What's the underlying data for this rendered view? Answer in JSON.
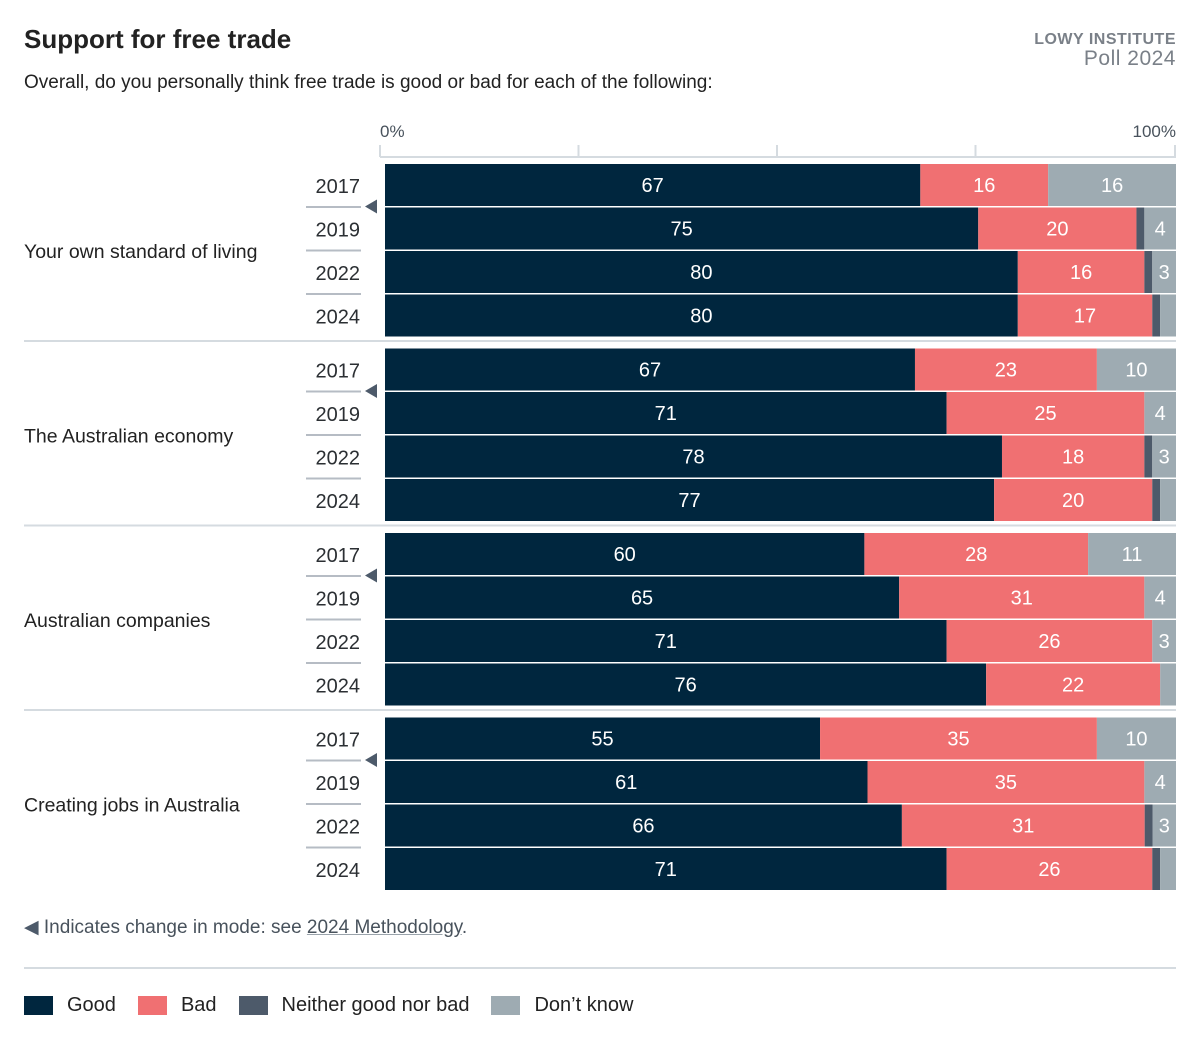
{
  "header": {
    "title": "Support for free trade",
    "subtitle": "Overall, do you personally think free trade is good or bad for each of the following:",
    "brand_line1": "LOWY INSTITUTE",
    "brand_line2": "Poll 2024"
  },
  "chart_data": {
    "type": "bar",
    "orientation": "horizontal",
    "stacked": true,
    "title": "Support for free trade",
    "xlim": [
      0,
      100
    ],
    "x_tick_labels": [
      "0%",
      "100%"
    ],
    "legend_position": "bottom-left",
    "series_names": [
      "Good",
      "Bad",
      "Neither good nor bad",
      "Don’t know"
    ],
    "colors": [
      "#00263e",
      "#f07072",
      "#4d5a6a",
      "#9eabb2"
    ],
    "groups": [
      {
        "label": "Your own standard of living",
        "rows": [
          {
            "year": "2017",
            "values": [
              67,
              16,
              0,
              16
            ]
          },
          {
            "year": "2019",
            "values": [
              75,
              20,
              1,
              4
            ]
          },
          {
            "year": "2022",
            "values": [
              80,
              16,
              1,
              3
            ]
          },
          {
            "year": "2024",
            "values": [
              80,
              17,
              1,
              2
            ]
          }
        ]
      },
      {
        "label": "The Australian economy",
        "rows": [
          {
            "year": "2017",
            "values": [
              67,
              23,
              0,
              10
            ]
          },
          {
            "year": "2019",
            "values": [
              71,
              25,
              0,
              4
            ]
          },
          {
            "year": "2022",
            "values": [
              78,
              18,
              1,
              3
            ]
          },
          {
            "year": "2024",
            "values": [
              77,
              20,
              1,
              2
            ]
          }
        ]
      },
      {
        "label": "Australian companies",
        "rows": [
          {
            "year": "2017",
            "values": [
              60,
              28,
              0,
              11
            ]
          },
          {
            "year": "2019",
            "values": [
              65,
              31,
              0,
              4
            ]
          },
          {
            "year": "2022",
            "values": [
              71,
              26,
              0,
              3
            ]
          },
          {
            "year": "2024",
            "values": [
              76,
              22,
              0,
              2
            ]
          }
        ]
      },
      {
        "label": "Creating jobs in Australia",
        "rows": [
          {
            "year": "2017",
            "values": [
              55,
              35,
              0,
              10
            ]
          },
          {
            "year": "2019",
            "values": [
              61,
              35,
              0,
              4
            ]
          },
          {
            "year": "2022",
            "values": [
              66,
              31,
              1,
              3
            ]
          },
          {
            "year": "2024",
            "values": [
              71,
              26,
              1,
              2
            ]
          }
        ]
      }
    ]
  },
  "footnote": {
    "text": "Indicates change in mode: see ",
    "link": "2024 Methodology",
    "end": "."
  },
  "legend": {
    "items": [
      "Good",
      "Bad",
      "Neither good nor bad",
      "Don’t know"
    ]
  }
}
